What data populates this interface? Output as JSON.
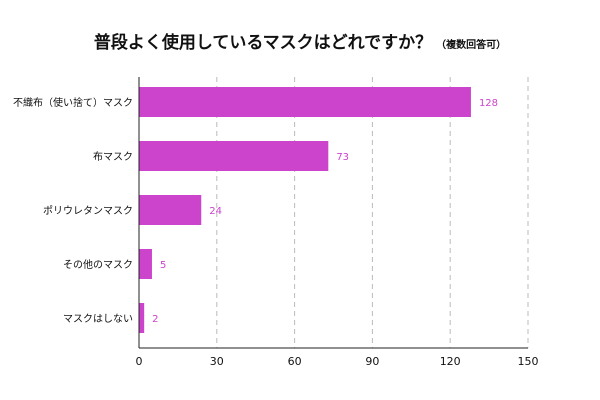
{
  "chart_data": {
    "type": "bar",
    "orientation": "horizontal",
    "title": "普段よく使用しているマスクはどれですか？",
    "subtitle": "（複数回答可）",
    "categories": [
      "不織布（使い捨て）マスク",
      "布マスク",
      "ポリウレタンマスク",
      "その他のマスク",
      "マスクはしない"
    ],
    "values": [
      128,
      73,
      24,
      5,
      2
    ],
    "xlim": [
      0,
      150
    ],
    "xticks": [
      0,
      30,
      60,
      90,
      120,
      150
    ],
    "grid": "vertical-dashed",
    "bar_color": "#cc44cc",
    "label_color": "#cc44cc"
  }
}
